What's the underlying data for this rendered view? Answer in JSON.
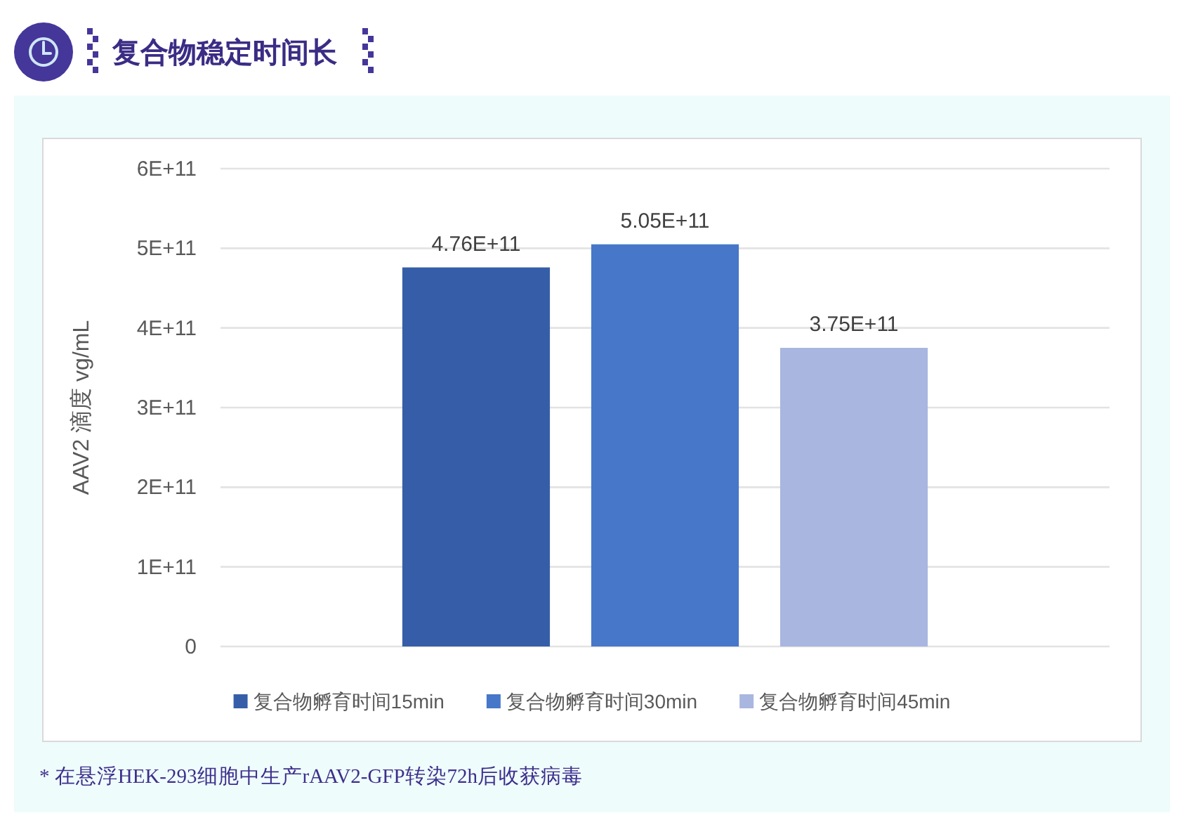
{
  "chart_data": {
    "type": "bar",
    "title": "复合物稳定时间长",
    "ylabel": "AAV2 滴度 vg/mL",
    "categories": [
      null
    ],
    "series": [
      {
        "name": "复合物孵育时间15min",
        "color": "#365ea8",
        "values": [
          476000000000
        ],
        "value_labels": [
          "4.76E+11"
        ]
      },
      {
        "name": "复合物孵育时间30min",
        "color": "#4677c8",
        "values": [
          505000000000
        ],
        "value_labels": [
          "5.05E+11"
        ]
      },
      {
        "name": "复合物孵育时间45min",
        "color": "#a9b6df",
        "values": [
          375000000000
        ],
        "value_labels": [
          "3.75E+11"
        ]
      }
    ],
    "ylim": [
      0,
      600000000000
    ],
    "yticks": [
      0,
      {
        "value": 100000000000,
        "label": "1E+11"
      },
      {
        "value": 200000000000,
        "label": "2E+11"
      },
      {
        "value": 300000000000,
        "label": "3E+11"
      },
      {
        "value": 400000000000,
        "label": "4E+11"
      },
      {
        "value": 500000000000,
        "label": "5E+11"
      },
      {
        "value": 600000000000,
        "label": "6E+11"
      }
    ],
    "grid": "y",
    "legend": "bottom",
    "annotations": [
      "* 在悬浮HEK-293细胞中生产rAAV2-GFP转染72h后收获病毒"
    ]
  }
}
